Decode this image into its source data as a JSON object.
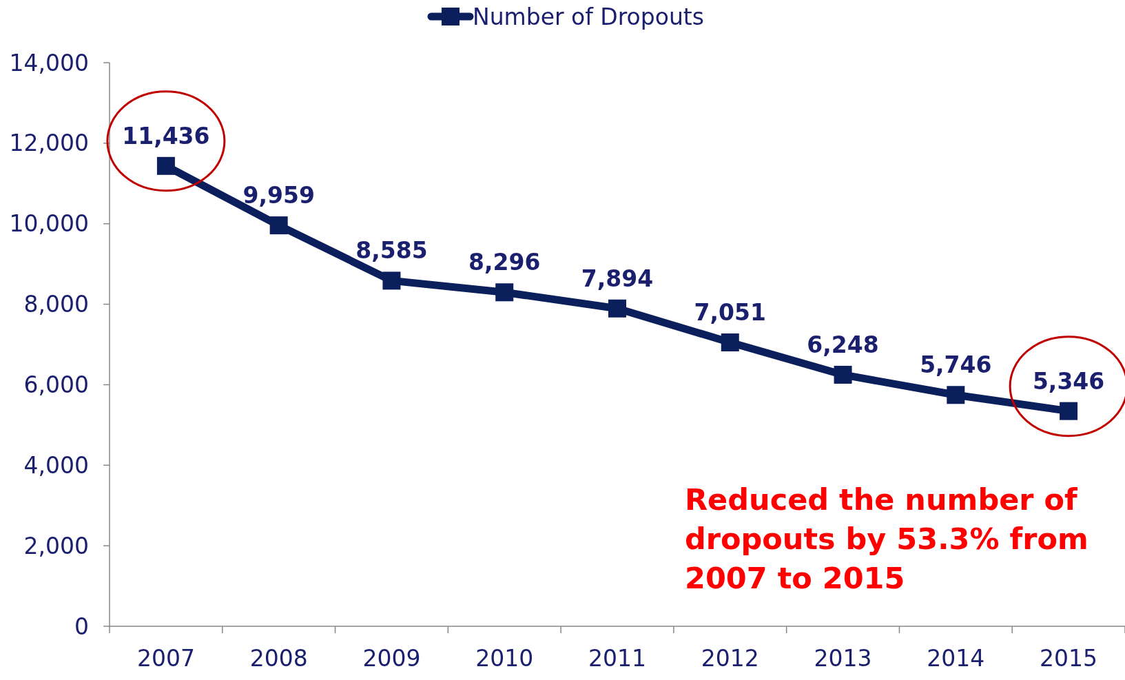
{
  "chart_data": {
    "type": "line",
    "categories": [
      "2007",
      "2008",
      "2009",
      "2010",
      "2011",
      "2012",
      "2013",
      "2014",
      "2015"
    ],
    "series": [
      {
        "name": "Number of Dropouts",
        "color": "#0b1f5c",
        "values": [
          11436,
          9959,
          8585,
          8296,
          7894,
          7051,
          6248,
          5746,
          5346
        ],
        "value_labels": [
          "11,436",
          "9,959",
          "8,585",
          "8,296",
          "7,894",
          "7,051",
          "6,248",
          "5,746",
          "5,346"
        ]
      }
    ],
    "ylim": [
      0,
      14000
    ],
    "yticks": [
      {
        "value": 0,
        "label": "0"
      },
      {
        "value": 2000,
        "label": "2,000"
      },
      {
        "value": 4000,
        "label": "4,000"
      },
      {
        "value": 6000,
        "label": "6,000"
      },
      {
        "value": 8000,
        "label": "8,000"
      },
      {
        "value": 10000,
        "label": "10,000"
      },
      {
        "value": 12000,
        "label": "12,000"
      },
      {
        "value": 14000,
        "label": "14,000"
      }
    ],
    "marker": "square",
    "legend": "top",
    "grid": false,
    "annotations": [
      "Reduced the number of dropouts by 53.3% from 2007 to 2015"
    ]
  }
}
